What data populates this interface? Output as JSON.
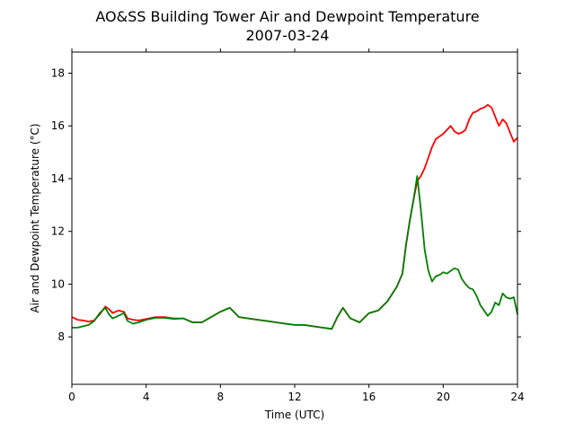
{
  "chart_data": {
    "type": "line",
    "title": "AO&SS Building Tower Air and Dewpoint Temperature",
    "subtitle": "2007-03-24",
    "xlabel": "Time (UTC)",
    "ylabel": "Air and Dewpoint Temperature (°C)",
    "xlim": [
      0,
      24
    ],
    "ylim": [
      6.2,
      18.8
    ],
    "xticks": [
      0,
      4,
      8,
      12,
      16,
      20,
      24
    ],
    "yticks": [
      8,
      10,
      12,
      14,
      16,
      18
    ],
    "grid": false,
    "legend": "none",
    "series": [
      {
        "color": "#ff0000",
        "x": [
          0,
          0.3,
          0.6,
          0.9,
          1.2,
          1.5,
          1.8,
          2.0,
          2.2,
          2.5,
          2.8,
          3.0,
          3.3,
          3.6,
          4.0,
          4.5,
          5.0,
          5.5,
          6.0,
          6.5,
          7.0,
          7.5,
          8.0,
          8.5,
          9.0,
          9.5,
          10.0,
          10.5,
          11.0,
          11.5,
          12.0,
          12.5,
          13.0,
          13.5,
          14.0,
          14.3,
          14.6,
          15.0,
          15.5,
          16.0,
          16.5,
          17.0,
          17.5,
          17.8,
          18.0,
          18.2,
          18.4,
          18.6,
          18.8,
          19.0,
          19.2,
          19.4,
          19.6,
          19.8,
          20.0,
          20.2,
          20.4,
          20.6,
          20.8,
          21.0,
          21.2,
          21.4,
          21.6,
          21.8,
          22.0,
          22.2,
          22.4,
          22.6,
          22.8,
          23.0,
          23.2,
          23.4,
          23.6,
          23.8,
          24.0
        ],
        "y": [
          8.75,
          8.65,
          8.62,
          8.58,
          8.62,
          8.85,
          9.15,
          9.05,
          8.9,
          9.0,
          8.95,
          8.7,
          8.65,
          8.62,
          8.68,
          8.75,
          8.75,
          8.7,
          8.7,
          8.55,
          8.55,
          8.75,
          8.95,
          9.1,
          8.75,
          8.7,
          8.65,
          8.6,
          8.55,
          8.5,
          8.45,
          8.45,
          8.4,
          8.35,
          8.3,
          8.75,
          9.1,
          8.7,
          8.55,
          8.9,
          9.0,
          9.35,
          9.9,
          10.4,
          11.5,
          12.4,
          13.2,
          13.9,
          14.1,
          14.4,
          14.8,
          15.2,
          15.5,
          15.6,
          15.7,
          15.85,
          16.0,
          15.8,
          15.7,
          15.75,
          15.85,
          16.25,
          16.5,
          16.55,
          16.65,
          16.7,
          16.8,
          16.7,
          16.35,
          16.0,
          16.25,
          16.1,
          15.75,
          15.4,
          15.55
        ]
      },
      {
        "color": "#008000",
        "x": [
          0,
          0.3,
          0.6,
          0.9,
          1.2,
          1.5,
          1.8,
          2.0,
          2.2,
          2.5,
          2.8,
          3.0,
          3.3,
          3.6,
          4.0,
          4.5,
          5.0,
          5.5,
          6.0,
          6.5,
          7.0,
          7.5,
          8.0,
          8.5,
          9.0,
          9.5,
          10.0,
          10.5,
          11.0,
          11.5,
          12.0,
          12.5,
          13.0,
          13.5,
          14.0,
          14.3,
          14.6,
          15.0,
          15.5,
          16.0,
          16.5,
          17.0,
          17.5,
          17.8,
          18.0,
          18.2,
          18.4,
          18.6,
          18.8,
          19.0,
          19.2,
          19.4,
          19.6,
          19.8,
          20.0,
          20.2,
          20.4,
          20.6,
          20.8,
          21.0,
          21.2,
          21.4,
          21.6,
          21.8,
          22.0,
          22.2,
          22.4,
          22.6,
          22.8,
          23.0,
          23.2,
          23.4,
          23.6,
          23.8,
          24.0
        ],
        "y": [
          8.35,
          8.35,
          8.4,
          8.45,
          8.6,
          8.9,
          9.1,
          8.85,
          8.7,
          8.8,
          8.9,
          8.6,
          8.5,
          8.55,
          8.65,
          8.72,
          8.72,
          8.68,
          8.7,
          8.55,
          8.55,
          8.75,
          8.95,
          9.1,
          8.75,
          8.7,
          8.65,
          8.6,
          8.55,
          8.5,
          8.45,
          8.45,
          8.4,
          8.35,
          8.3,
          8.75,
          9.1,
          8.7,
          8.55,
          8.9,
          9.0,
          9.35,
          9.9,
          10.4,
          11.5,
          12.4,
          13.2,
          14.1,
          12.8,
          11.3,
          10.5,
          10.1,
          10.3,
          10.35,
          10.45,
          10.4,
          10.5,
          10.6,
          10.55,
          10.2,
          10.0,
          9.85,
          9.8,
          9.55,
          9.2,
          9.0,
          8.8,
          8.95,
          9.3,
          9.2,
          9.65,
          9.5,
          9.45,
          9.5,
          8.85
        ]
      }
    ]
  }
}
